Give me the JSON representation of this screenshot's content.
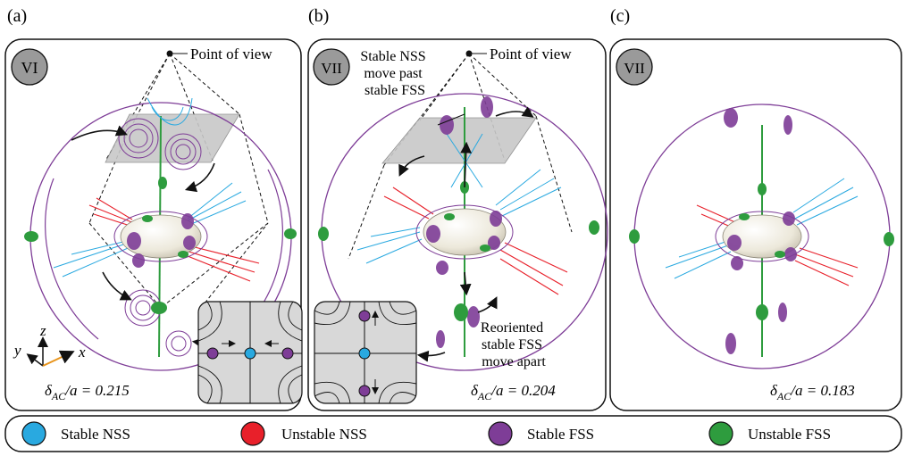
{
  "panels": [
    {
      "letter": "(a)",
      "regime": "VI",
      "pov_label": "Point of view",
      "delta_symbol": "δ",
      "delta_sub": "AC",
      "delta_rest": "/a = 0.215"
    },
    {
      "letter": "(b)",
      "regime": "VII",
      "pov_label": "Point of view",
      "note_top": [
        "Stable NSS",
        "move past",
        "stable FSS"
      ],
      "note_bottom": [
        "Reoriented",
        "stable FSS",
        "move apart"
      ],
      "delta_symbol": "δ",
      "delta_sub": "AC",
      "delta_rest": "/a = 0.204"
    },
    {
      "letter": "(c)",
      "regime": "VII",
      "delta_symbol": "δ",
      "delta_sub": "AC",
      "delta_rest": "/a = 0.183"
    }
  ],
  "axes": {
    "z": "z",
    "y": "y",
    "x": "x"
  },
  "legend": [
    {
      "label": "Stable NSS",
      "color": "#29a9e0"
    },
    {
      "label": "Unstable NSS",
      "color": "#e8202a"
    },
    {
      "label": "Stable FSS",
      "color": "#7e3d97"
    },
    {
      "label": "Unstable FSS",
      "color": "#2e9c3e"
    }
  ],
  "colors": {
    "stable_nss": "#29a9e0",
    "unstable_nss": "#e8202a",
    "stable_fss": "#7e3d97",
    "unstable_fss": "#2e9c3e",
    "plane": "#c8c8c8",
    "badge": "#9a9a9a"
  }
}
